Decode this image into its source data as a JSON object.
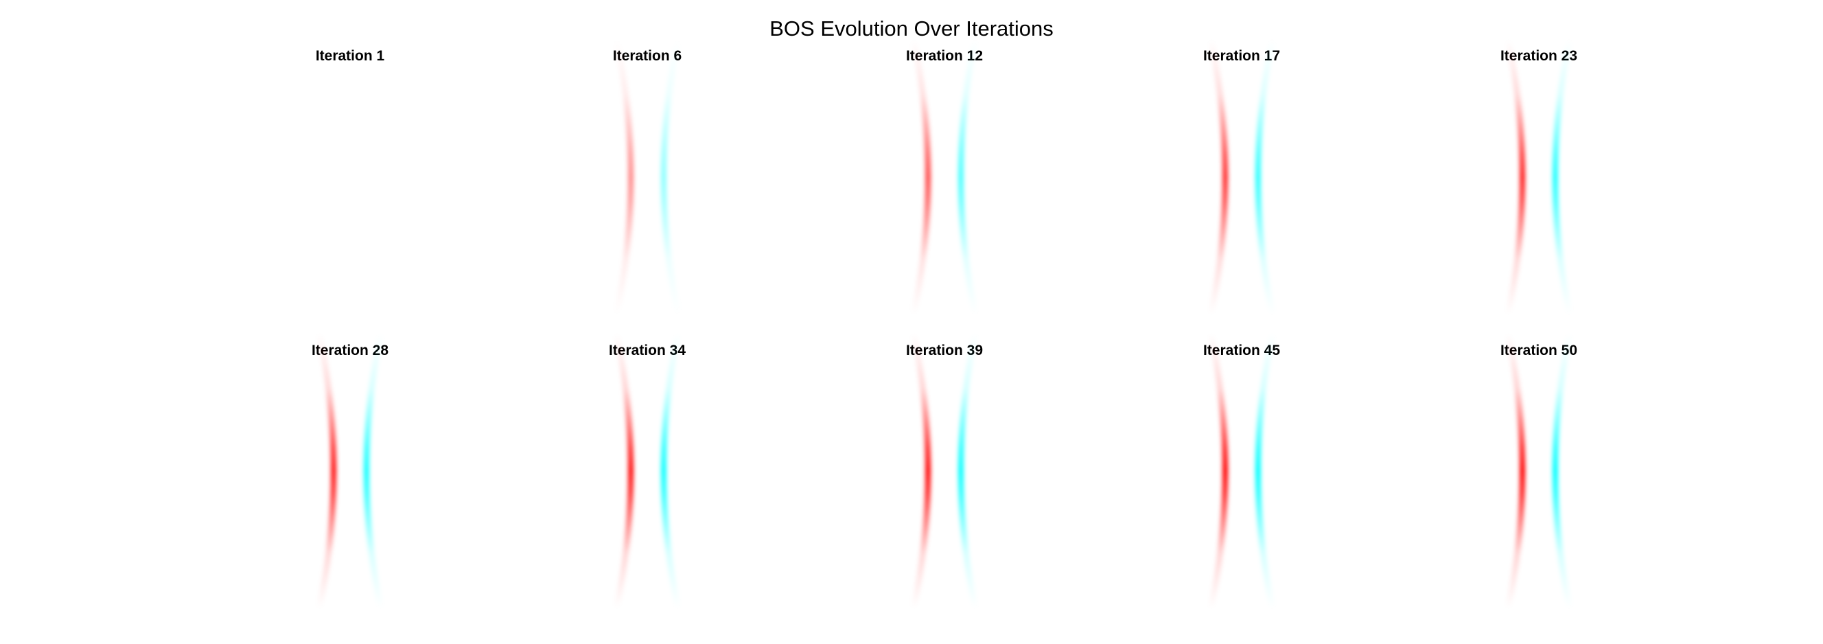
{
  "chart_data": {
    "type": "heatmap",
    "title": "BOS Evolution Over Iterations",
    "grid": false,
    "axes": "off",
    "layout": {
      "rows": 2,
      "cols": 5
    },
    "colors": {
      "positive": "#ff0000",
      "negative": "#00ffff",
      "background": "#ffffff"
    },
    "panels": [
      {
        "title": "Iteration 1",
        "iteration": 1,
        "intensity": 0.0
      },
      {
        "title": "Iteration 6",
        "iteration": 6,
        "intensity": 0.45
      },
      {
        "title": "Iteration 12",
        "iteration": 12,
        "intensity": 0.7
      },
      {
        "title": "Iteration 17",
        "iteration": 17,
        "intensity": 0.82
      },
      {
        "title": "Iteration 23",
        "iteration": 23,
        "intensity": 0.88
      },
      {
        "title": "Iteration 28",
        "iteration": 28,
        "intensity": 0.92
      },
      {
        "title": "Iteration 34",
        "iteration": 34,
        "intensity": 0.95
      },
      {
        "title": "Iteration 39",
        "iteration": 39,
        "intensity": 0.97
      },
      {
        "title": "Iteration 45",
        "iteration": 45,
        "intensity": 0.99
      },
      {
        "title": "Iteration 50",
        "iteration": 50,
        "intensity": 1.0
      }
    ]
  }
}
